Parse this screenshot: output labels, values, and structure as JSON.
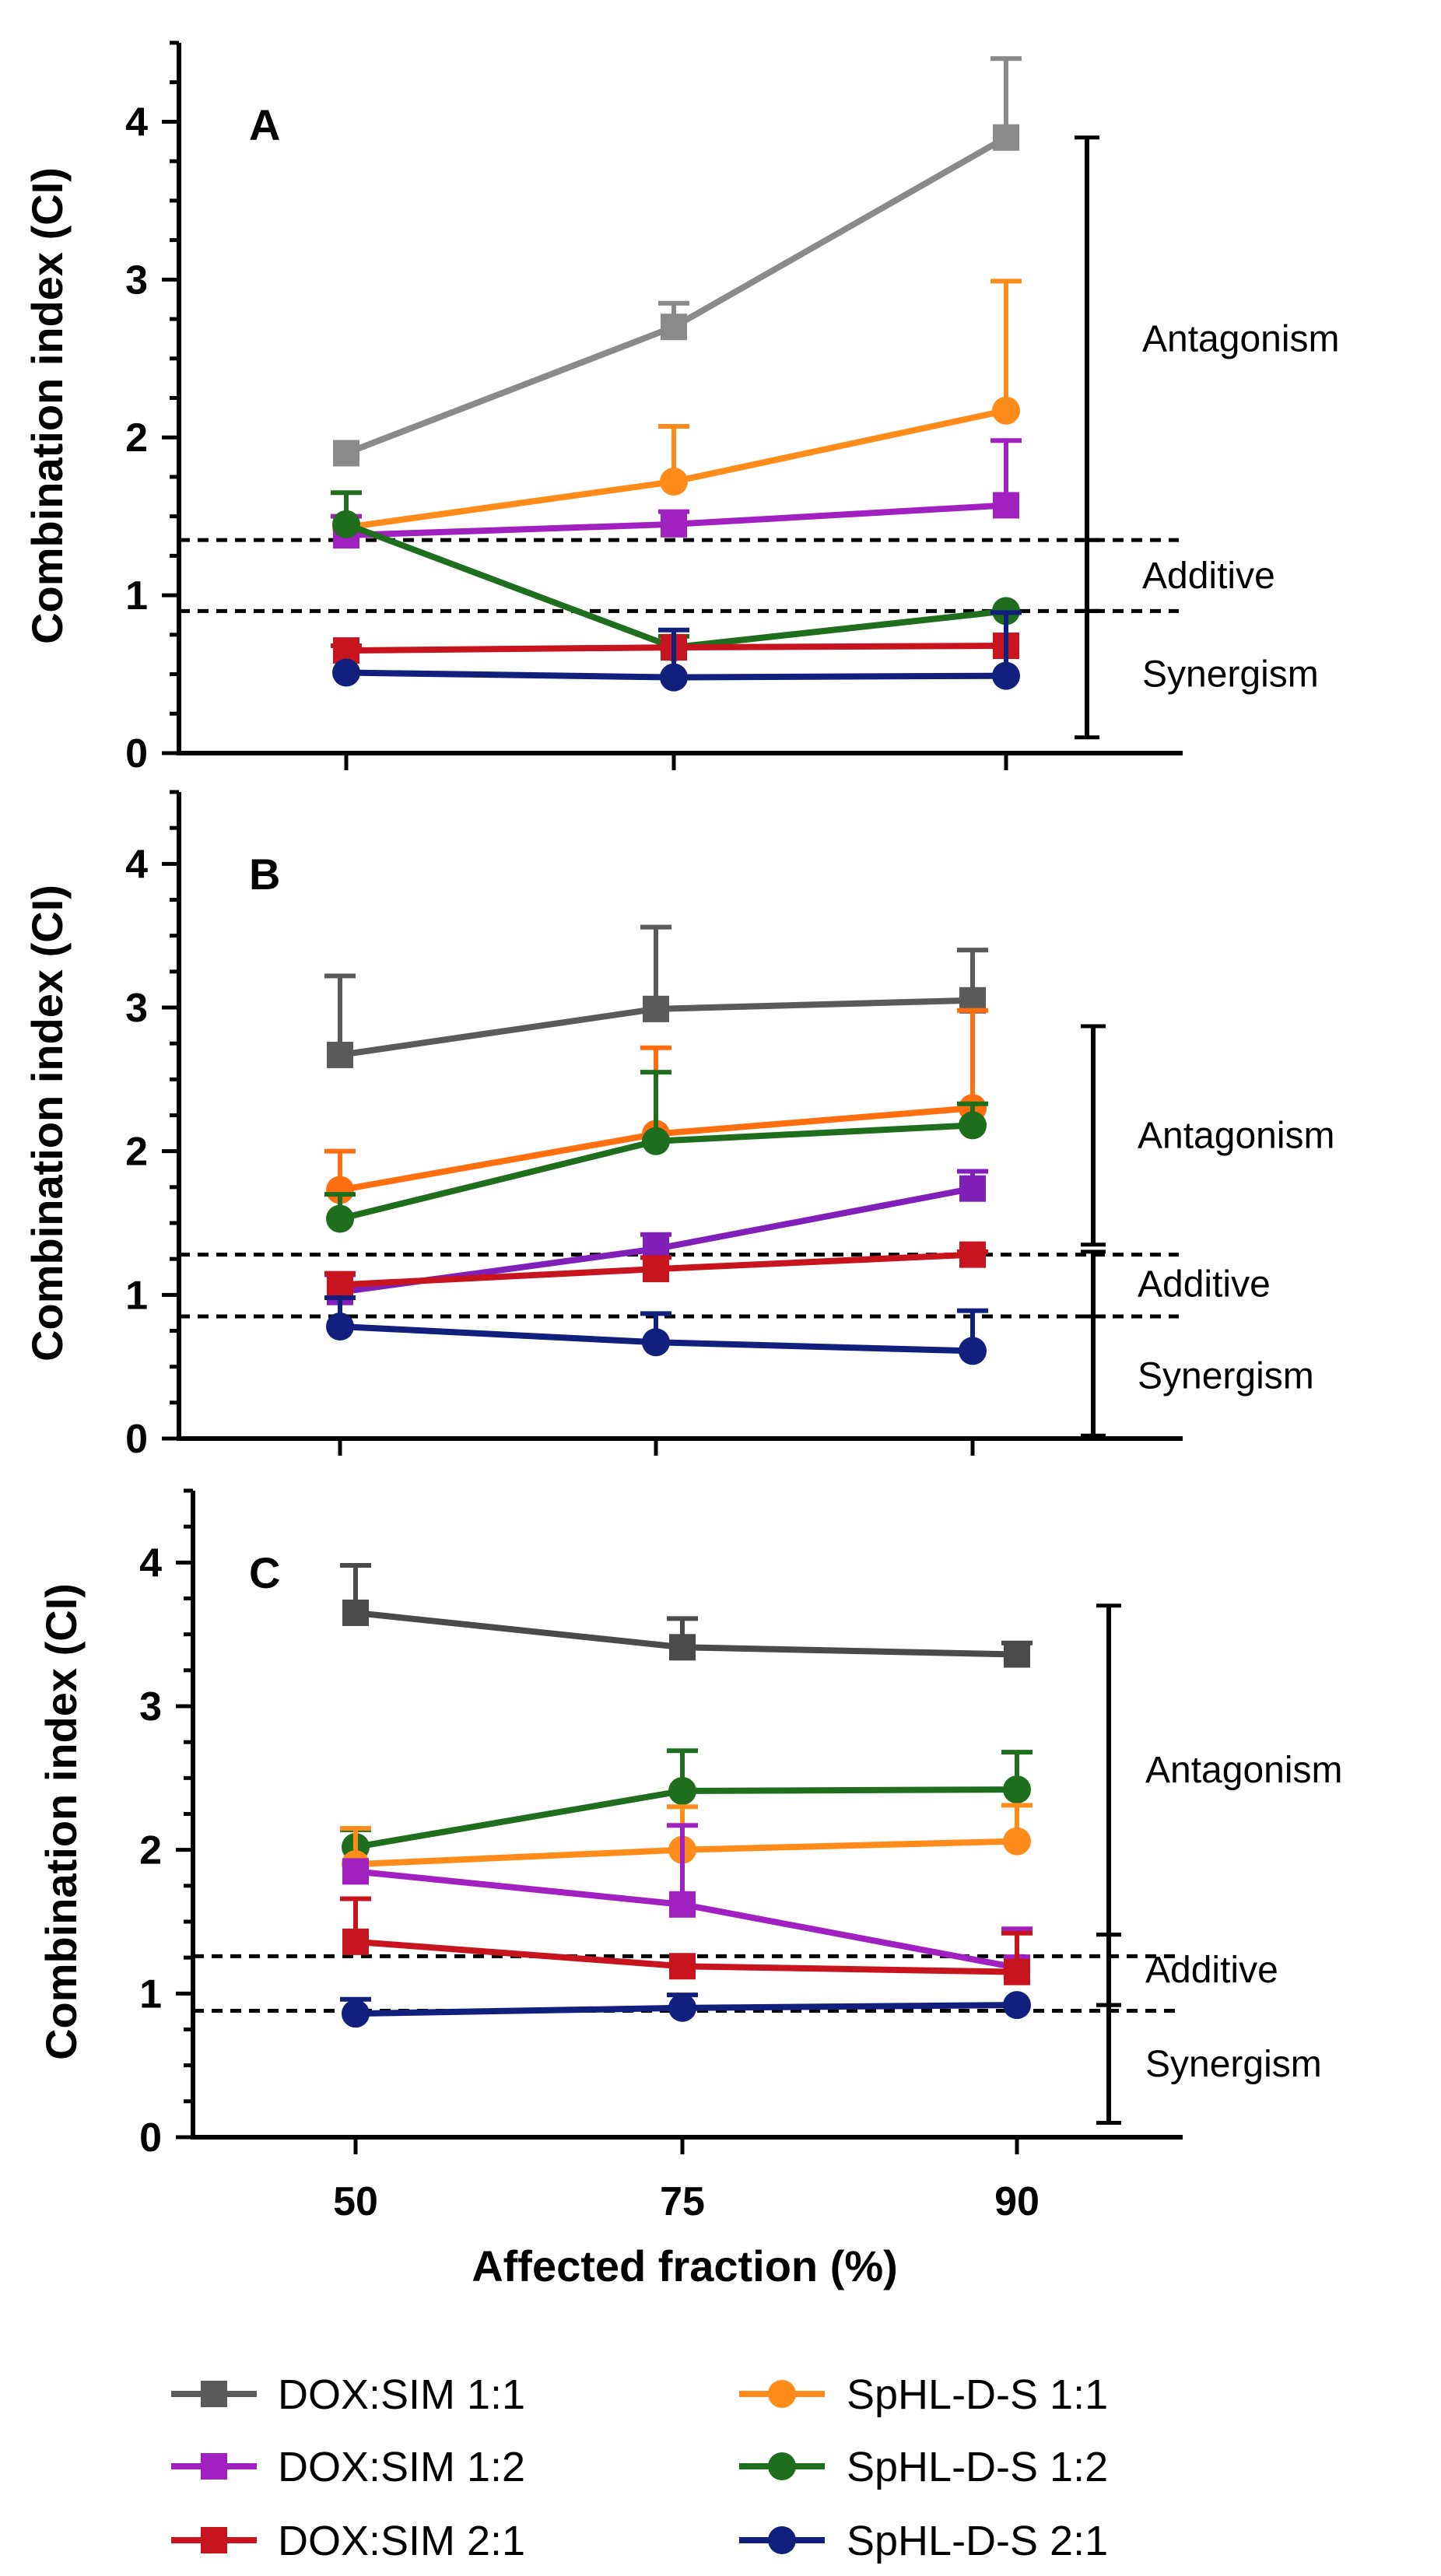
{
  "chart_data": [
    {
      "type": "line",
      "panel": "A",
      "title": "",
      "xlabel": "",
      "ylabel": "Combination index (CI)",
      "x": [
        50,
        75,
        90
      ],
      "x_tick_labels": [
        "50",
        "75",
        "90"
      ],
      "ylim": [
        0,
        4.5
      ],
      "y_ticks": [
        "0",
        "1",
        "2",
        "3",
        "4"
      ],
      "thresholds": [
        0.9,
        1.35
      ],
      "regions": [
        {
          "label": "Antagonism",
          "from": 1.35,
          "to": 3.9
        },
        {
          "label": "Additive",
          "from": 0.9,
          "to": 1.35
        },
        {
          "label": "Synergism",
          "from": 0.1,
          "to": 0.9
        }
      ],
      "series": [
        {
          "name": "DOX:SIM 1:1",
          "color": "#8a8a8a",
          "marker": "square",
          "values": [
            1.9,
            2.7,
            3.9
          ],
          "errors": [
            0.0,
            0.15,
            0.5
          ]
        },
        {
          "name": "SpHL-D-S 1:1",
          "color": "#ff8c1a",
          "marker": "circle",
          "values": [
            1.43,
            1.72,
            2.17
          ],
          "errors": [
            0.0,
            0.35,
            0.82
          ]
        },
        {
          "name": "DOX:SIM 1:2",
          "color": "#a020c0",
          "marker": "square",
          "values": [
            1.38,
            1.45,
            1.57
          ],
          "errors": [
            0.12,
            0.08,
            0.41
          ]
        },
        {
          "name": "SpHL-D-S 1:2",
          "color": "#1e6e1e",
          "marker": "circle",
          "values": [
            1.45,
            0.67,
            0.9
          ],
          "errors": [
            0.2,
            0.07,
            0.0
          ]
        },
        {
          "name": "DOX:SIM 2:1",
          "color": "#c8141e",
          "marker": "square",
          "values": [
            0.65,
            0.67,
            0.68
          ],
          "errors": [
            0.03,
            0.0,
            0.0
          ]
        },
        {
          "name": "SpHL-D-S 2:1",
          "color": "#10207c",
          "marker": "circle",
          "values": [
            0.51,
            0.48,
            0.49
          ],
          "errors": [
            0.0,
            0.3,
            0.4
          ]
        }
      ]
    },
    {
      "type": "line",
      "panel": "B",
      "title": "",
      "xlabel": "",
      "ylabel": "Combination index (CI)",
      "x": [
        50,
        75,
        90
      ],
      "x_tick_labels": [
        "50",
        "75",
        "90"
      ],
      "ylim": [
        0,
        4.5
      ],
      "y_ticks": [
        "0",
        "1",
        "2",
        "3",
        "4"
      ],
      "thresholds": [
        0.85,
        1.28
      ],
      "regions": [
        {
          "label": "Antagonism",
          "from": 1.35,
          "to": 2.87
        },
        {
          "label": "Additive",
          "from": 0.85,
          "to": 1.3
        },
        {
          "label": "Synergism",
          "from": 0.02,
          "to": 0.85
        }
      ],
      "series": [
        {
          "name": "DOX:SIM 1:1",
          "color": "#5a5a5a",
          "marker": "square",
          "values": [
            2.67,
            2.99,
            3.05
          ],
          "errors": [
            0.55,
            0.57,
            0.35
          ]
        },
        {
          "name": "SpHL-D-S 1:1",
          "color": "#ff6f10",
          "marker": "circle",
          "values": [
            1.73,
            2.12,
            2.3
          ],
          "errors": [
            0.27,
            0.6,
            0.68
          ]
        },
        {
          "name": "SpHL-D-S 1:2",
          "color": "#1e6e1e",
          "marker": "circle",
          "values": [
            1.53,
            2.07,
            2.18
          ],
          "errors": [
            0.17,
            0.48,
            0.15
          ]
        },
        {
          "name": "DOX:SIM 1:2",
          "color": "#8020b8",
          "marker": "square",
          "values": [
            1.02,
            1.32,
            1.74
          ],
          "errors": [
            0.12,
            0.1,
            0.12
          ]
        },
        {
          "name": "DOX:SIM 2:1",
          "color": "#c8141e",
          "marker": "square",
          "values": [
            1.07,
            1.18,
            1.28
          ],
          "errors": [
            0.08,
            0.08,
            0.02
          ]
        },
        {
          "name": "SpHL-D-S 2:1",
          "color": "#10207c",
          "marker": "circle",
          "values": [
            0.78,
            0.67,
            0.61
          ],
          "errors": [
            0.2,
            0.2,
            0.28
          ]
        }
      ]
    },
    {
      "type": "line",
      "panel": "C",
      "title": "",
      "xlabel": "Affected fraction (%)",
      "ylabel": "Combination index (CI)",
      "x": [
        50,
        75,
        90
      ],
      "x_tick_labels": [
        "50",
        "75",
        "90"
      ],
      "ylim": [
        0,
        4.5
      ],
      "y_ticks": [
        "0",
        "1",
        "2",
        "3",
        "4"
      ],
      "thresholds": [
        0.88,
        1.26
      ],
      "regions": [
        {
          "label": "Antagonism",
          "from": 1.41,
          "to": 3.7
        },
        {
          "label": "Additive",
          "from": 0.92,
          "to": 1.41
        },
        {
          "label": "Synergism",
          "from": 0.1,
          "to": 0.92
        }
      ],
      "series": [
        {
          "name": "DOX:SIM 1:1",
          "color": "#4a4a4a",
          "marker": "square",
          "values": [
            3.65,
            3.41,
            3.36
          ],
          "errors": [
            0.33,
            0.2,
            0.08
          ]
        },
        {
          "name": "SpHL-D-S 1:2",
          "color": "#1e6e1e",
          "marker": "circle",
          "values": [
            2.02,
            2.41,
            2.42
          ],
          "errors": [
            0.12,
            0.28,
            0.26
          ]
        },
        {
          "name": "SpHL-D-S 1:1",
          "color": "#ff8c1a",
          "marker": "circle",
          "values": [
            1.9,
            2.0,
            2.06
          ],
          "errors": [
            0.25,
            0.3,
            0.25
          ]
        },
        {
          "name": "DOX:SIM 1:2",
          "color": "#a020c0",
          "marker": "square",
          "values": [
            1.85,
            1.62,
            1.18
          ],
          "errors": [
            0.0,
            0.55,
            0.27
          ]
        },
        {
          "name": "DOX:SIM 2:1",
          "color": "#c8141e",
          "marker": "square",
          "values": [
            1.36,
            1.19,
            1.15
          ],
          "errors": [
            0.3,
            0.0,
            0.27
          ]
        },
        {
          "name": "SpHL-D-S 2:1",
          "color": "#10207c",
          "marker": "circle",
          "values": [
            0.86,
            0.9,
            0.92
          ],
          "errors": [
            0.1,
            0.09,
            0.0
          ]
        }
      ]
    }
  ],
  "legend": [
    {
      "label": "DOX:SIM 1:1",
      "color": "#5a5a5a",
      "marker": "square"
    },
    {
      "label": "SpHL-D-S 1:1",
      "color": "#ff8c1a",
      "marker": "circle"
    },
    {
      "label": "DOX:SIM 1:2",
      "color": "#a020c0",
      "marker": "square"
    },
    {
      "label": "SpHL-D-S 1:2",
      "color": "#1e6e1e",
      "marker": "circle"
    },
    {
      "label": "DOX:SIM 2:1",
      "color": "#c8141e",
      "marker": "square"
    },
    {
      "label": "SpHL-D-S 2:1",
      "color": "#10207c",
      "marker": "circle"
    }
  ]
}
